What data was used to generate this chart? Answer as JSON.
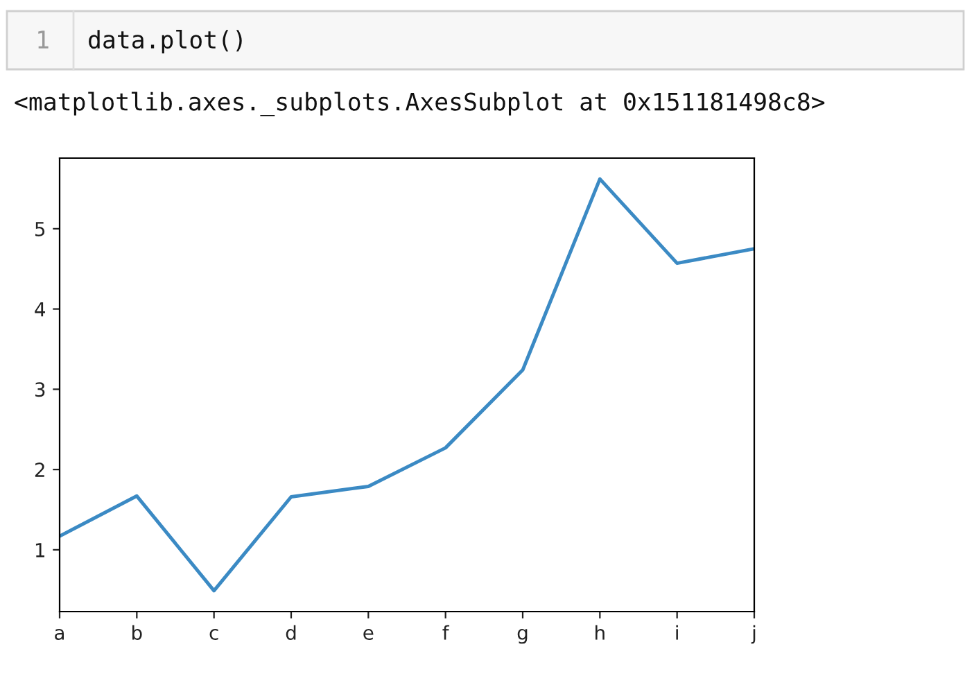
{
  "chart_data": {
    "type": "line",
    "annotations": [
      "1",
      "data.plot()",
      "<matplotlib.axes._subplots.AxesSubplot at 0x151181498c8>"
    ],
    "categories": [
      "a",
      "b",
      "c",
      "d",
      "e",
      "f",
      "g",
      "h",
      "i",
      "j"
    ],
    "series": [
      {
        "color": "#3b8ac4",
        "values": [
          1.17,
          1.67,
          0.49,
          1.66,
          1.79,
          2.27,
          3.24,
          5.62,
          4.57,
          4.75
        ]
      }
    ],
    "ylim": [
      0.23,
      5.88
    ],
    "yticks": [
      1,
      2,
      3,
      4,
      5
    ],
    "grid": false,
    "marker": "none",
    "line_style": "solid"
  }
}
